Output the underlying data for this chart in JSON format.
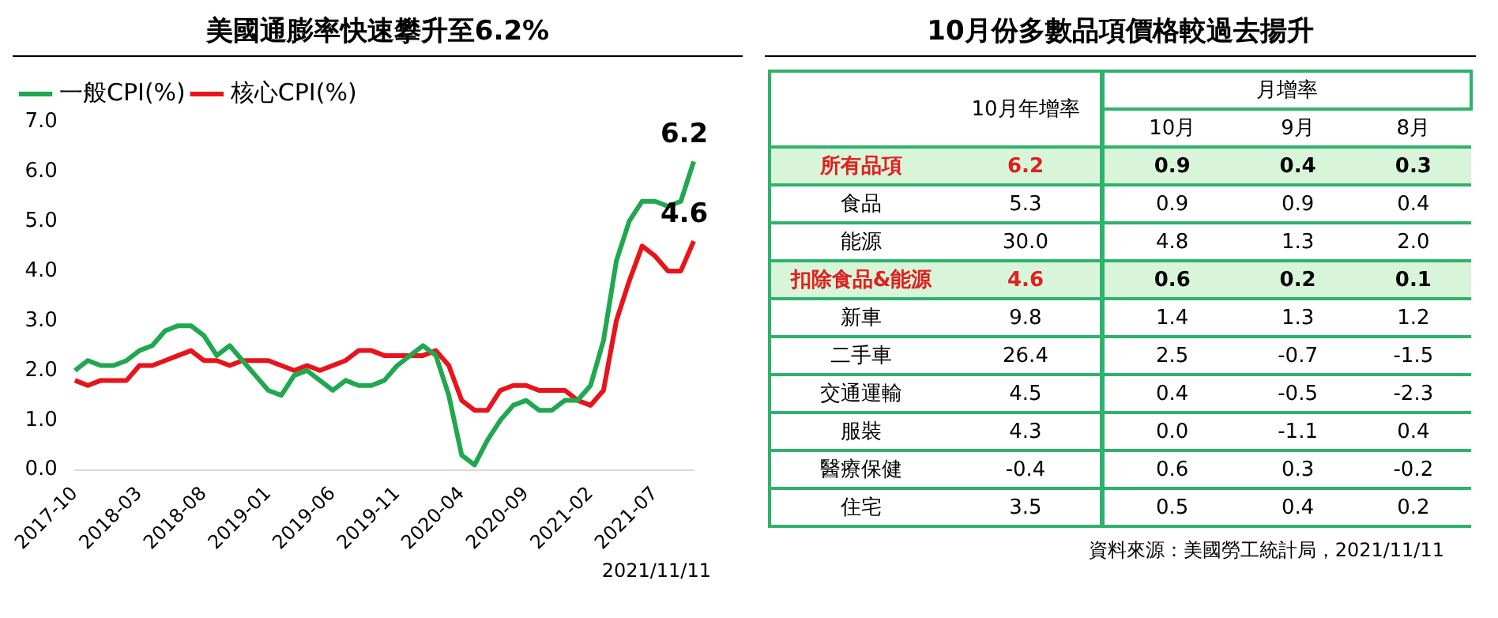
{
  "chart_data": [
    {
      "type": "line",
      "title": "美國通膨率快速攀升至6.2%",
      "categories": [
        "2017-10",
        null,
        null,
        null,
        null,
        "2018-03",
        null,
        null,
        null,
        null,
        "2018-08",
        null,
        null,
        null,
        null,
        "2019-01",
        null,
        null,
        null,
        null,
        "2019-06",
        null,
        null,
        null,
        null,
        "2019-11",
        null,
        null,
        null,
        null,
        "2020-04",
        null,
        null,
        null,
        null,
        "2020-09",
        null,
        null,
        null,
        null,
        "2021-02",
        null,
        null,
        null,
        null,
        "2021-07",
        null,
        null,
        null
      ],
      "series": [
        {
          "name": "一般CPI(%)",
          "color": "#1fa84f",
          "values": [
            2.0,
            2.2,
            2.1,
            2.1,
            2.2,
            2.4,
            2.5,
            2.8,
            2.9,
            2.9,
            2.7,
            2.3,
            2.5,
            2.2,
            1.9,
            1.6,
            1.5,
            1.9,
            2.0,
            1.8,
            1.6,
            1.8,
            1.7,
            1.7,
            1.8,
            2.1,
            2.3,
            2.5,
            2.3,
            1.5,
            0.3,
            0.1,
            0.6,
            1.0,
            1.3,
            1.4,
            1.2,
            1.2,
            1.4,
            1.4,
            1.7,
            2.6,
            4.2,
            5.0,
            5.4,
            5.4,
            5.3,
            5.4,
            6.2
          ],
          "value_labels": [
            null,
            null,
            null,
            null,
            null,
            null,
            null,
            null,
            null,
            null,
            null,
            null,
            null,
            null,
            null,
            null,
            null,
            null,
            null,
            null,
            null,
            null,
            null,
            null,
            null,
            null,
            null,
            null,
            null,
            null,
            null,
            null,
            null,
            null,
            null,
            null,
            null,
            null,
            null,
            null,
            null,
            null,
            null,
            null,
            null,
            null,
            null,
            null,
            "6.2"
          ]
        },
        {
          "name": "核心CPI(%)",
          "color": "#e8141b",
          "values": [
            1.8,
            1.7,
            1.8,
            1.8,
            1.8,
            2.1,
            2.1,
            2.2,
            2.3,
            2.4,
            2.2,
            2.2,
            2.1,
            2.2,
            2.2,
            2.2,
            2.1,
            2.0,
            2.1,
            2.0,
            2.1,
            2.2,
            2.4,
            2.4,
            2.3,
            2.3,
            2.3,
            2.3,
            2.4,
            2.1,
            1.4,
            1.2,
            1.2,
            1.6,
            1.7,
            1.7,
            1.6,
            1.6,
            1.6,
            1.4,
            1.3,
            1.6,
            3.0,
            3.8,
            4.5,
            4.3,
            4.0,
            4.0,
            4.6
          ],
          "value_labels": [
            null,
            null,
            null,
            null,
            null,
            null,
            null,
            null,
            null,
            null,
            null,
            null,
            null,
            null,
            null,
            null,
            null,
            null,
            null,
            null,
            null,
            null,
            null,
            null,
            null,
            null,
            null,
            null,
            null,
            null,
            null,
            null,
            null,
            null,
            null,
            null,
            null,
            null,
            null,
            null,
            null,
            null,
            null,
            null,
            null,
            null,
            null,
            null,
            "4.6"
          ]
        }
      ],
      "ylim": [
        0,
        7
      ],
      "yticks": [
        {
          "value": 0,
          "label": "0.0"
        },
        {
          "value": 1,
          "label": "1.0"
        },
        {
          "value": 2,
          "label": "2.0"
        },
        {
          "value": 3,
          "label": "3.0"
        },
        {
          "value": 4,
          "label": "4.0"
        },
        {
          "value": 5,
          "label": "5.0"
        },
        {
          "value": 6,
          "label": "6.0"
        },
        {
          "value": 7,
          "label": "7.0"
        }
      ],
      "grid": false,
      "legend": "top left",
      "marker": "none",
      "line_style": "solid",
      "annotations": [
        "2021/11/11"
      ]
    },
    {
      "type": "other",
      "title": "10月份多數品項價格較過去揚升",
      "annotations": [
        "月增率",
        "資料來源：美國勞工統計局，2021/11/11"
      ],
      "categories": [
        "10月年增率",
        "10月",
        "9月",
        "8月"
      ],
      "y_categories": [
        "所有品項",
        "食品",
        "能源",
        "扣除食品&能源",
        "新車",
        "二手車",
        "交通運輸",
        "服裝",
        "醫療保健",
        "住宅"
      ],
      "colors": [
        "#d9f5d9",
        "#ffffff",
        "#ffffff",
        "#d9f5d9",
        "#ffffff",
        "#ffffff",
        "#ffffff",
        "#ffffff",
        "#ffffff",
        "#ffffff"
      ],
      "cell_labels": [
        [
          "6.2",
          "0.9",
          "0.4",
          "0.3"
        ],
        [
          "5.3",
          "0.9",
          "0.9",
          "0.4"
        ],
        [
          "30.0",
          "4.8",
          "1.3",
          "2.0"
        ],
        [
          "4.6",
          "0.6",
          "0.2",
          "0.1"
        ],
        [
          "9.8",
          "1.4",
          "1.3",
          "1.2"
        ],
        [
          "26.4",
          "2.5",
          "-0.7",
          "-1.5"
        ],
        [
          "4.5",
          "0.4",
          "-0.5",
          "-2.3"
        ],
        [
          "4.3",
          "0.0",
          "-1.1",
          "0.4"
        ],
        [
          "-0.4",
          "0.6",
          "0.3",
          "-0.2"
        ],
        [
          "3.5",
          "0.5",
          "0.4",
          "0.2"
        ]
      ]
    }
  ]
}
